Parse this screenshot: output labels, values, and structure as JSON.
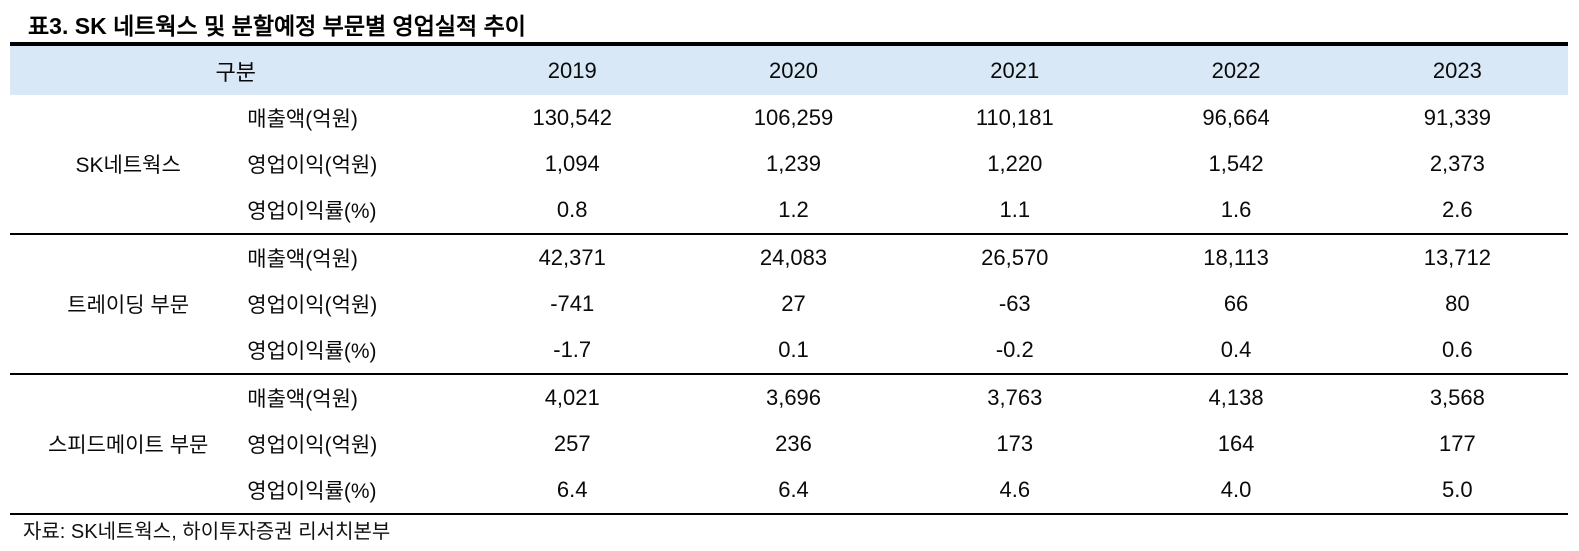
{
  "title": "표3. SK 네트웍스 및 분할예정 부문별 영업실적 추이",
  "colors": {
    "header_bg": "#d8e8f7",
    "text": "#0a0a0a",
    "rule": "#000000"
  },
  "table": {
    "header": {
      "label": "구분",
      "years": [
        "2019",
        "2020",
        "2021",
        "2022",
        "2023"
      ]
    },
    "sections": [
      {
        "group": "SK네트웍스",
        "rows": [
          {
            "metric": "매출액(억원)",
            "values": [
              "130,542",
              "106,259",
              "110,181",
              "96,664",
              "91,339"
            ]
          },
          {
            "metric": "영업이익(억원)",
            "values": [
              "1,094",
              "1,239",
              "1,220",
              "1,542",
              "2,373"
            ]
          },
          {
            "metric": "영업이익률(%)",
            "values": [
              "0.8",
              "1.2",
              "1.1",
              "1.6",
              "2.6"
            ]
          }
        ]
      },
      {
        "group": "트레이딩 부문",
        "rows": [
          {
            "metric": "매출액(억원)",
            "values": [
              "42,371",
              "24,083",
              "26,570",
              "18,113",
              "13,712"
            ]
          },
          {
            "metric": "영업이익(억원)",
            "values": [
              "-741",
              "27",
              "-63",
              "66",
              "80"
            ]
          },
          {
            "metric": "영업이익률(%)",
            "values": [
              "-1.7",
              "0.1",
              "-0.2",
              "0.4",
              "0.6"
            ]
          }
        ]
      },
      {
        "group": "스피드메이트 부문",
        "rows": [
          {
            "metric": "매출액(억원)",
            "values": [
              "4,021",
              "3,696",
              "3,763",
              "4,138",
              "3,568"
            ]
          },
          {
            "metric": "영업이익(억원)",
            "values": [
              "257",
              "236",
              "173",
              "164",
              "177"
            ]
          },
          {
            "metric": "영업이익률(%)",
            "values": [
              "6.4",
              "6.4",
              "4.6",
              "4.0",
              "5.0"
            ]
          }
        ]
      }
    ]
  },
  "footer": {
    "source": "자료: SK네트웍스, 하이투자증권 리서치본부"
  }
}
